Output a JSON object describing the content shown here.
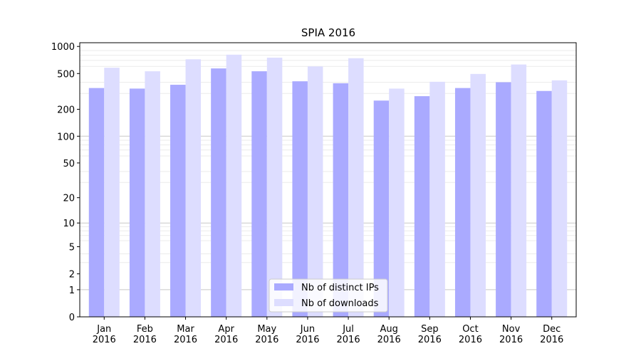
{
  "chart_data": {
    "type": "bar",
    "title": "SPIA 2016",
    "xlabel": "",
    "ylabel": "",
    "yscale": "log1p",
    "ylim": [
      0,
      1000
    ],
    "yticks": [
      0,
      1,
      2,
      5,
      10,
      20,
      50,
      100,
      200,
      500,
      1000
    ],
    "ytick_labels": [
      "0",
      "1",
      "2",
      "5",
      "10",
      "20",
      "50",
      "100",
      "200",
      "500",
      "1000"
    ],
    "categories": [
      "Jan\n2016",
      "Feb\n2016",
      "Mar\n2016",
      "Apr\n2016",
      "May\n2016",
      "Jun\n2016",
      "Jul\n2016",
      "Aug\n2016",
      "Sep\n2016",
      "Oct\n2016",
      "Nov\n2016",
      "Dec\n2016"
    ],
    "series": [
      {
        "name": "Nb of distinct IPs",
        "color": "#aaaaff",
        "values": [
          345,
          340,
          375,
          570,
          530,
          410,
          390,
          250,
          280,
          345,
          400,
          320
        ]
      },
      {
        "name": "Nb of downloads",
        "color": "#ddddff",
        "values": [
          580,
          530,
          720,
          810,
          750,
          600,
          740,
          340,
          405,
          495,
          630,
          420
        ]
      }
    ],
    "grid": true,
    "legend": "bottom-center"
  }
}
